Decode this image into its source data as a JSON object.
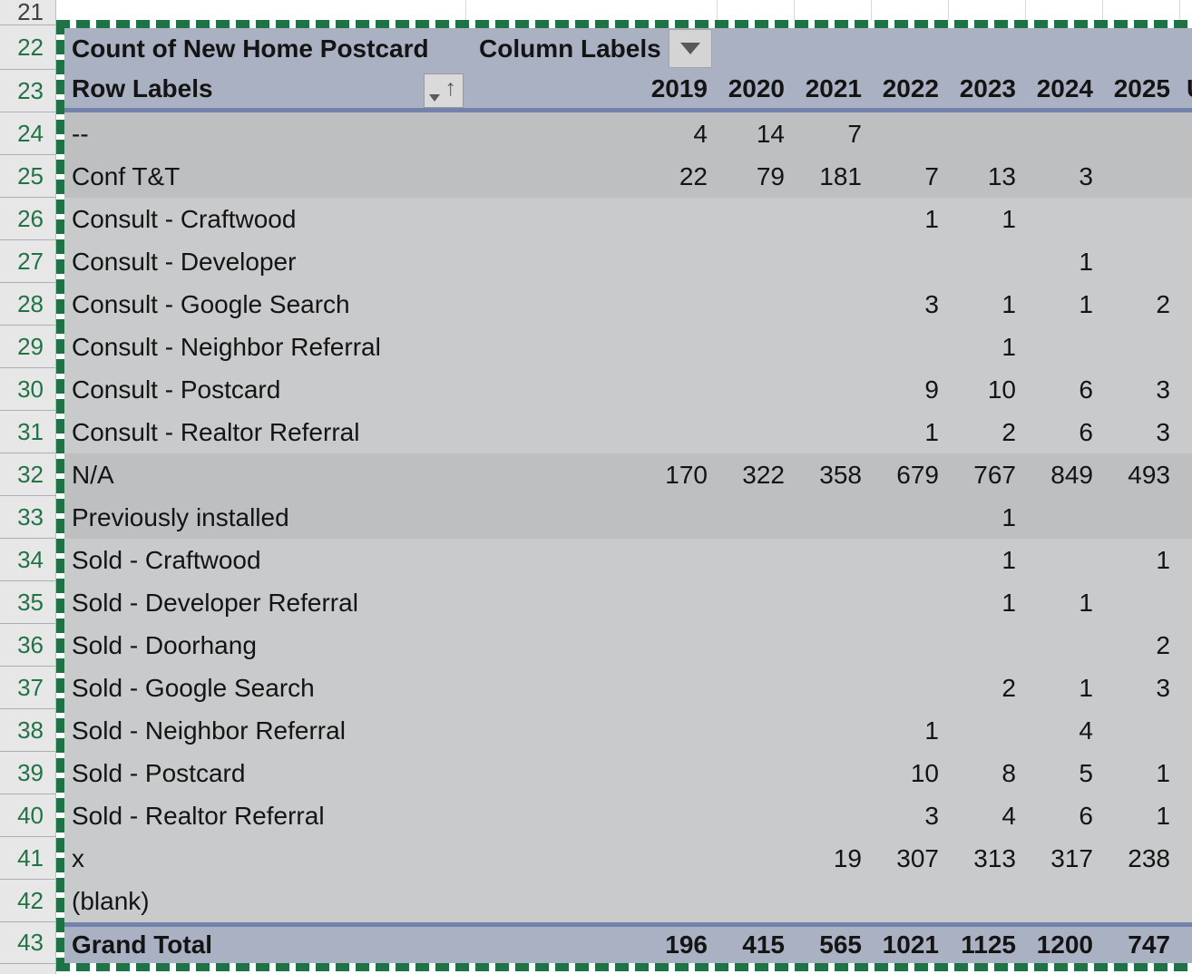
{
  "app": {
    "kind": "spreadsheet-pivot-table",
    "selection_active": true
  },
  "colors": {
    "selection_ants_green": "#1f7245",
    "row_number_green": "#217346",
    "header_fill": "#a9b1c2",
    "band_dark": "#bdbfc1",
    "band_light": "#c9cacb",
    "divider_blue": "#7282aa",
    "gutter_fill": "#e7e7e7"
  },
  "grid": {
    "row_numbers": [
      "21",
      "22",
      "23",
      "24",
      "25",
      "26",
      "27",
      "28",
      "29",
      "30",
      "31",
      "32",
      "33",
      "34",
      "35",
      "36",
      "37",
      "38",
      "39",
      "40",
      "41",
      "42",
      "43"
    ],
    "inactive_row_number": "21"
  },
  "pivot": {
    "title_cell": "Count of New Home Postcard",
    "column_labels_header": "Column Labels",
    "row_labels_header": "Row Labels",
    "columns": [
      "2019",
      "2020",
      "2021",
      "2022",
      "2023",
      "2024",
      "2025"
    ],
    "clipped_column_label": "U",
    "icons": {
      "column_filter": "chevron-down-icon",
      "row_sort": "sort-ascending-icon"
    },
    "rows": [
      {
        "label": "--",
        "band": "dark",
        "values": [
          "4",
          "14",
          "7",
          "",
          "",
          "",
          ""
        ]
      },
      {
        "label": "Conf T&T",
        "band": "dark",
        "values": [
          "22",
          "79",
          "181",
          "7",
          "13",
          "3",
          ""
        ]
      },
      {
        "label": "Consult - Craftwood",
        "band": "light",
        "values": [
          "",
          "",
          "",
          "1",
          "1",
          "",
          ""
        ]
      },
      {
        "label": "Consult - Developer",
        "band": "light",
        "values": [
          "",
          "",
          "",
          "",
          "",
          "1",
          ""
        ]
      },
      {
        "label": "Consult - Google Search",
        "band": "light",
        "values": [
          "",
          "",
          "",
          "3",
          "1",
          "1",
          "2"
        ]
      },
      {
        "label": "Consult - Neighbor Referral",
        "band": "light",
        "values": [
          "",
          "",
          "",
          "",
          "1",
          "",
          ""
        ]
      },
      {
        "label": "Consult - Postcard",
        "band": "light",
        "values": [
          "",
          "",
          "",
          "9",
          "10",
          "6",
          "3"
        ]
      },
      {
        "label": "Consult - Realtor Referral",
        "band": "light",
        "values": [
          "",
          "",
          "",
          "1",
          "2",
          "6",
          "3"
        ]
      },
      {
        "label": "N/A",
        "band": "dark",
        "values": [
          "170",
          "322",
          "358",
          "679",
          "767",
          "849",
          "493"
        ]
      },
      {
        "label": "Previously installed",
        "band": "dark",
        "values": [
          "",
          "",
          "",
          "",
          "1",
          "",
          ""
        ]
      },
      {
        "label": "Sold - Craftwood",
        "band": "light",
        "values": [
          "",
          "",
          "",
          "",
          "1",
          "",
          "1"
        ]
      },
      {
        "label": "Sold - Developer Referral",
        "band": "light",
        "values": [
          "",
          "",
          "",
          "",
          "1",
          "1",
          ""
        ]
      },
      {
        "label": "Sold - Doorhang",
        "band": "light",
        "values": [
          "",
          "",
          "",
          "",
          "",
          "",
          "2"
        ]
      },
      {
        "label": "Sold - Google Search",
        "band": "light",
        "values": [
          "",
          "",
          "",
          "",
          "2",
          "1",
          "3"
        ]
      },
      {
        "label": "Sold - Neighbor Referral",
        "band": "light",
        "values": [
          "",
          "",
          "",
          "1",
          "",
          "4",
          ""
        ]
      },
      {
        "label": "Sold - Postcard",
        "band": "light",
        "values": [
          "",
          "",
          "",
          "10",
          "8",
          "5",
          "1"
        ]
      },
      {
        "label": "Sold - Realtor Referral",
        "band": "light",
        "values": [
          "",
          "",
          "",
          "3",
          "4",
          "6",
          "1"
        ]
      },
      {
        "label": "x",
        "band": "light",
        "values": [
          "",
          "",
          "19",
          "307",
          "313",
          "317",
          "238"
        ]
      },
      {
        "label": "(blank)",
        "band": "light",
        "values": [
          "",
          "",
          "",
          "",
          "",
          "",
          ""
        ]
      }
    ],
    "grand_total": {
      "label": "Grand Total",
      "values": [
        "196",
        "415",
        "565",
        "1021",
        "1125",
        "1200",
        "747"
      ]
    }
  }
}
